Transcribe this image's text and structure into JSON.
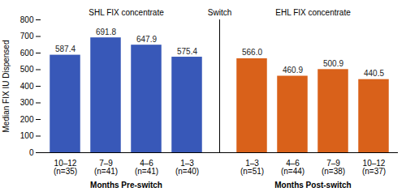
{
  "chart_data": {
    "type": "bar",
    "categories": [
      "10–12\n(n=35)",
      "7–9\n(n=41)",
      "4–6\n(n=41)",
      "1–3\n(n=40)",
      "1–3\n(n=51)",
      "4–6\n(n=44)",
      "7–9\n(n=38)",
      "10–12\n(n=37)"
    ],
    "values": [
      587.4,
      691.8,
      647.9,
      575.4,
      566.0,
      460.9,
      500.9,
      440.5
    ],
    "value_labels": [
      "587.4",
      "691.8",
      "647.9",
      "575.4",
      "566.0",
      "460.9",
      "500.9",
      "440.5"
    ],
    "colors": [
      "#3858b8",
      "#3858b8",
      "#3858b8",
      "#3858b8",
      "#d9611a",
      "#d9611a",
      "#d9611a",
      "#d9611a"
    ],
    "ylabel": "Median FIX IU Dispensed",
    "ylim": [
      0,
      800
    ],
    "yticks": [
      0,
      100,
      200,
      300,
      400,
      500,
      600,
      700,
      800
    ],
    "data_labels": true,
    "grid": false,
    "group_labels": [
      "Months Pre-switch",
      "Months Post-switch"
    ],
    "annotations": [
      "SHL FIX concentrate",
      "Switch",
      "EHL FIX concentrate"
    ]
  }
}
